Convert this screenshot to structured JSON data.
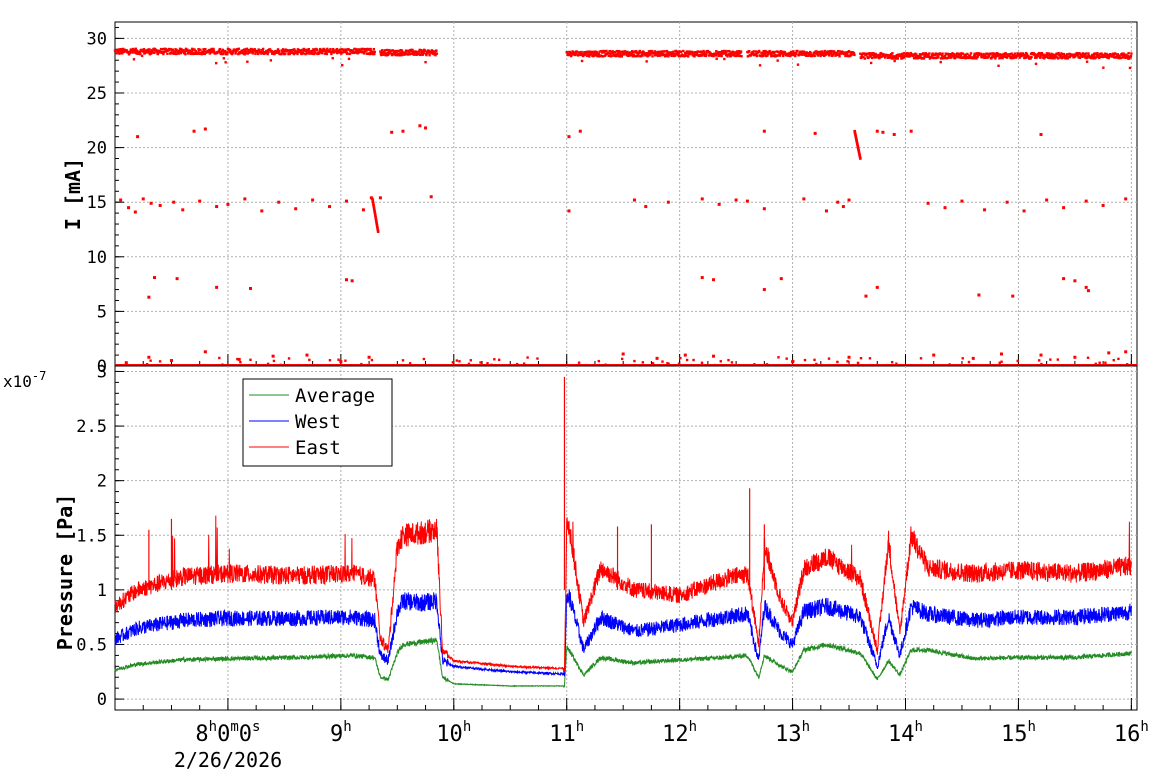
{
  "chart_data": [
    {
      "type": "scatter",
      "title": "",
      "ylabel": "I [mA]",
      "xlabel": "",
      "ylim": [
        0,
        31.5
      ],
      "yticks": [
        0,
        5,
        10,
        15,
        20,
        25,
        30
      ],
      "grid": true,
      "series": [
        {
          "color": "#ff0000",
          "segments": [
            {
              "start": 7.0,
              "end": 9.3,
              "level": 28.8
            },
            {
              "start": 9.35,
              "end": 9.85,
              "level": 28.7
            },
            {
              "start": 11.0,
              "end": 12.55,
              "level": 28.6
            },
            {
              "start": 12.6,
              "end": 13.55,
              "level": 28.6
            },
            {
              "start": 13.6,
              "end": 16.0,
              "level": 28.4
            }
          ],
          "scatter_points": [
            [
              7.05,
              15.2
            ],
            [
              7.12,
              14.5
            ],
            [
              7.18,
              14.1
            ],
            [
              7.25,
              15.3
            ],
            [
              7.32,
              14.9
            ],
            [
              7.4,
              14.7
            ],
            [
              7.52,
              15.0
            ],
            [
              7.6,
              14.3
            ],
            [
              7.75,
              15.1
            ],
            [
              7.9,
              14.6
            ],
            [
              8.0,
              14.8
            ],
            [
              8.15,
              15.3
            ],
            [
              8.3,
              14.2
            ],
            [
              8.45,
              15.0
            ],
            [
              8.6,
              14.4
            ],
            [
              8.75,
              15.2
            ],
            [
              8.9,
              14.6
            ],
            [
              9.05,
              15.1
            ],
            [
              9.2,
              14.3
            ],
            [
              9.27,
              15.4
            ],
            [
              7.3,
              6.3
            ],
            [
              7.35,
              8.1
            ],
            [
              7.55,
              8.0
            ],
            [
              7.9,
              7.2
            ],
            [
              8.2,
              7.1
            ],
            [
              9.05,
              7.9
            ],
            [
              9.1,
              7.8
            ],
            [
              7.2,
              21.0
            ],
            [
              7.7,
              21.5
            ],
            [
              7.8,
              21.7
            ],
            [
              9.45,
              21.4
            ],
            [
              9.55,
              21.5
            ],
            [
              9.7,
              22.0
            ],
            [
              9.75,
              21.8
            ],
            [
              9.35,
              15.4
            ],
            [
              9.8,
              15.5
            ],
            [
              11.02,
              21.0
            ],
            [
              11.12,
              21.5
            ],
            [
              11.02,
              14.2
            ],
            [
              11.6,
              15.2
            ],
            [
              11.7,
              14.6
            ],
            [
              11.9,
              15.0
            ],
            [
              12.2,
              15.3
            ],
            [
              12.35,
              14.8
            ],
            [
              12.5,
              15.2
            ],
            [
              12.6,
              15.1
            ],
            [
              12.75,
              14.4
            ],
            [
              13.1,
              15.3
            ],
            [
              13.3,
              14.2
            ],
            [
              13.4,
              15.0
            ],
            [
              13.45,
              14.6
            ],
            [
              13.5,
              15.2
            ],
            [
              13.8,
              21.4
            ],
            [
              13.9,
              21.2
            ],
            [
              14.05,
              21.5
            ],
            [
              12.75,
              21.5
            ],
            [
              13.2,
              21.3
            ],
            [
              13.75,
              21.5
            ],
            [
              14.2,
              14.9
            ],
            [
              14.35,
              14.5
            ],
            [
              14.5,
              15.1
            ],
            [
              14.7,
              14.3
            ],
            [
              14.9,
              15.0
            ],
            [
              15.05,
              14.2
            ],
            [
              15.25,
              15.2
            ],
            [
              15.4,
              14.5
            ],
            [
              15.6,
              15.1
            ],
            [
              15.75,
              14.7
            ],
            [
              15.95,
              15.3
            ],
            [
              12.2,
              8.1
            ],
            [
              12.3,
              7.9
            ],
            [
              12.75,
              7.0
            ],
            [
              12.9,
              8.0
            ],
            [
              13.65,
              6.4
            ],
            [
              13.75,
              7.2
            ],
            [
              14.65,
              6.5
            ],
            [
              14.95,
              6.4
            ],
            [
              15.4,
              8.0
            ],
            [
              15.5,
              7.8
            ],
            [
              15.6,
              7.2
            ],
            [
              15.62,
              6.9
            ],
            [
              15.2,
              21.2
            ]
          ],
          "ramps": [
            {
              "x0": 9.28,
              "y0": 15.3,
              "x1": 9.33,
              "y1": 12.3
            },
            {
              "x0": 13.55,
              "y0": 21.5,
              "x1": 13.6,
              "y1": 19.0
            }
          ],
          "baseline_points": [
            [
              7.1,
              0.3
            ],
            [
              7.3,
              0.8
            ],
            [
              7.5,
              0.5
            ],
            [
              7.8,
              1.3
            ],
            [
              8.1,
              0.6
            ],
            [
              8.4,
              0.9
            ],
            [
              8.7,
              1.0
            ],
            [
              9.0,
              0.4
            ],
            [
              9.25,
              0.8
            ],
            [
              11.5,
              1.1
            ],
            [
              11.8,
              0.7
            ],
            [
              12.05,
              1.0
            ],
            [
              12.3,
              0.9
            ],
            [
              13.0,
              0.4
            ],
            [
              13.5,
              0.8
            ],
            [
              14.25,
              1.0
            ],
            [
              14.6,
              0.7
            ],
            [
              14.85,
              1.1
            ],
            [
              15.2,
              1.0
            ],
            [
              15.5,
              0.8
            ],
            [
              15.8,
              1.2
            ],
            [
              15.95,
              1.3
            ]
          ]
        }
      ]
    },
    {
      "type": "line",
      "title": "",
      "ylabel": "Pressure [Pa]",
      "xlabel": "",
      "y_multiplier_label": "x10",
      "y_multiplier_exp": "-7",
      "ylim": [
        -0.1,
        3.05
      ],
      "yticks": [
        0,
        0.5,
        1,
        1.5,
        2,
        2.5,
        3
      ],
      "ytick_labels": [
        "0",
        "0.5",
        "1",
        "1.5",
        "2",
        "2.5",
        "3"
      ],
      "grid": true,
      "legend": "top-left",
      "series": [
        {
          "name": "Average",
          "color": "#228b22",
          "x": [
            7.0,
            7.2,
            7.6,
            8.0,
            8.6,
            9.1,
            9.3,
            9.35,
            9.42,
            9.5,
            9.55,
            9.7,
            9.85,
            9.9,
            10.0,
            10.5,
            10.98,
            11.0,
            11.02,
            11.15,
            11.3,
            11.6,
            12.0,
            12.4,
            12.6,
            12.7,
            12.75,
            12.9,
            13.0,
            13.1,
            13.3,
            13.6,
            13.75,
            13.85,
            13.95,
            14.05,
            14.2,
            14.6,
            15.0,
            15.5,
            16.0
          ],
          "y": [
            0.27,
            0.32,
            0.36,
            0.37,
            0.38,
            0.4,
            0.38,
            0.2,
            0.18,
            0.42,
            0.5,
            0.52,
            0.54,
            0.2,
            0.14,
            0.12,
            0.12,
            0.47,
            0.45,
            0.22,
            0.38,
            0.33,
            0.36,
            0.38,
            0.4,
            0.2,
            0.4,
            0.3,
            0.25,
            0.45,
            0.5,
            0.42,
            0.18,
            0.35,
            0.22,
            0.45,
            0.45,
            0.37,
            0.38,
            0.38,
            0.42
          ]
        },
        {
          "name": "West",
          "color": "#0000ff",
          "x": [
            7.0,
            7.2,
            7.6,
            8.0,
            8.6,
            9.1,
            9.3,
            9.35,
            9.42,
            9.5,
            9.55,
            9.7,
            9.85,
            9.9,
            10.0,
            10.5,
            10.98,
            11.0,
            11.02,
            11.15,
            11.3,
            11.6,
            12.0,
            12.4,
            12.6,
            12.7,
            12.75,
            12.9,
            13.0,
            13.1,
            13.3,
            13.6,
            13.75,
            13.85,
            13.95,
            14.05,
            14.2,
            14.6,
            15.0,
            15.5,
            16.0
          ],
          "y": [
            0.55,
            0.65,
            0.72,
            0.74,
            0.74,
            0.75,
            0.72,
            0.4,
            0.35,
            0.8,
            0.9,
            0.88,
            0.9,
            0.35,
            0.3,
            0.25,
            0.23,
            0.9,
            0.95,
            0.45,
            0.75,
            0.62,
            0.68,
            0.75,
            0.78,
            0.35,
            0.85,
            0.6,
            0.5,
            0.8,
            0.85,
            0.75,
            0.3,
            0.75,
            0.4,
            0.85,
            0.78,
            0.72,
            0.75,
            0.75,
            0.8
          ]
        },
        {
          "name": "East",
          "color": "#ff0000",
          "x": [
            7.0,
            7.2,
            7.6,
            8.0,
            8.6,
            9.1,
            9.3,
            9.35,
            9.42,
            9.5,
            9.55,
            9.7,
            9.85,
            9.9,
            10.0,
            10.5,
            10.98,
            11.0,
            11.02,
            11.15,
            11.3,
            11.6,
            12.0,
            12.4,
            12.6,
            12.7,
            12.75,
            12.9,
            13.0,
            13.1,
            13.3,
            13.6,
            13.75,
            13.85,
            13.95,
            14.05,
            14.2,
            14.6,
            15.0,
            15.5,
            16.0
          ],
          "y": [
            0.85,
            1.0,
            1.12,
            1.15,
            1.13,
            1.15,
            1.1,
            0.55,
            0.45,
            1.4,
            1.5,
            1.52,
            1.55,
            0.45,
            0.35,
            0.3,
            0.28,
            1.55,
            1.6,
            0.7,
            1.2,
            1.0,
            0.95,
            1.1,
            1.15,
            0.5,
            1.4,
            0.9,
            0.7,
            1.2,
            1.3,
            1.1,
            0.45,
            1.45,
            0.6,
            1.5,
            1.2,
            1.15,
            1.18,
            1.15,
            1.22
          ]
        }
      ],
      "spikes": [
        {
          "x": 10.98,
          "y": 2.95
        },
        {
          "x": 12.62,
          "y": 1.93
        },
        {
          "x": 12.75,
          "y": 1.6
        },
        {
          "x": 7.3,
          "y": 1.55
        },
        {
          "x": 7.5,
          "y": 1.65
        },
        {
          "x": 11.45,
          "y": 1.58
        },
        {
          "x": 11.75,
          "y": 1.6
        }
      ]
    }
  ],
  "x_axis": {
    "range": [
      7.0,
      16.05
    ],
    "tick_hours": [
      8,
      9,
      10,
      11,
      12,
      13,
      14,
      15,
      16
    ],
    "tick_labels": [
      "8h0m0s",
      "9h",
      "10h",
      "11h",
      "12h",
      "13h",
      "14h",
      "15h",
      "16h"
    ],
    "date_label": "2/26/2026"
  }
}
